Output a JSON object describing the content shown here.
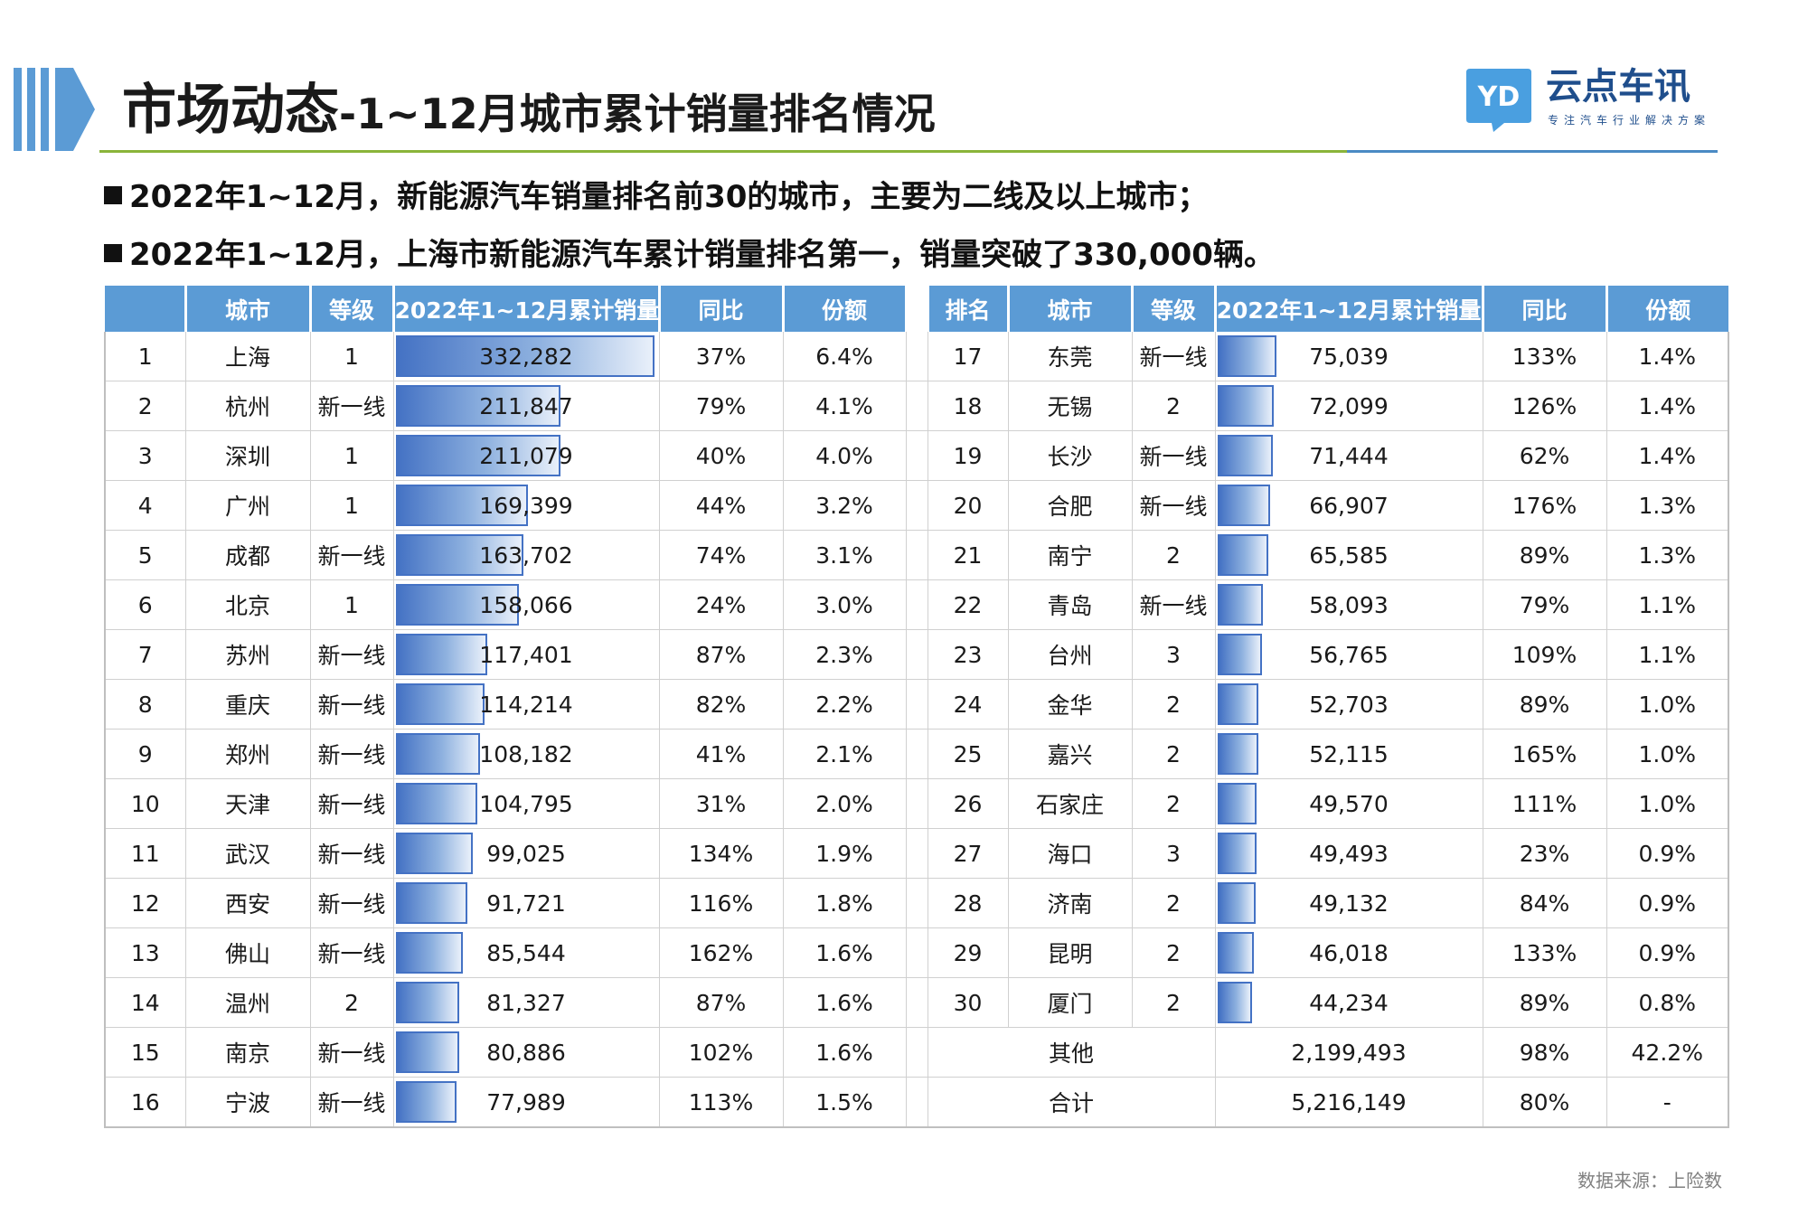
{
  "header": {
    "title_main": "市场动态",
    "title_sub": "-1~12月城市累计销量排名情况"
  },
  "logo": {
    "mark_text": "YD",
    "name": "云点车讯",
    "tagline": "专注汽车行业解决方案"
  },
  "bullets": [
    "2022年1~12月，新能源汽车销量排名前30的城市，主要为二线及以上城市；",
    "2022年1~12月，上海市新能源汽车累计销量排名第一，销量突破了330,000辆。"
  ],
  "colors": {
    "header_blue": "#5b9bd5",
    "bar_blue": "#4472c4",
    "green_line": "#8ab43a",
    "brand": "#1f4e8c"
  },
  "table": {
    "headers_left": [
      "",
      "城市",
      "等级",
      "2022年1~12月累计销量",
      "同比",
      "份额"
    ],
    "headers_right": [
      "排名",
      "城市",
      "等级",
      "2022年1~12月累计销量",
      "同比",
      "份额"
    ],
    "max_sales": 332282,
    "left_rows": [
      {
        "rank": "1",
        "city": "上海",
        "tier": "1",
        "sales": "332,282",
        "value": 332282,
        "yoy": "37%",
        "share": "6.4%"
      },
      {
        "rank": "2",
        "city": "杭州",
        "tier": "新一线",
        "sales": "211,847",
        "value": 211847,
        "yoy": "79%",
        "share": "4.1%"
      },
      {
        "rank": "3",
        "city": "深圳",
        "tier": "1",
        "sales": "211,079",
        "value": 211079,
        "yoy": "40%",
        "share": "4.0%"
      },
      {
        "rank": "4",
        "city": "广州",
        "tier": "1",
        "sales": "169,399",
        "value": 169399,
        "yoy": "44%",
        "share": "3.2%"
      },
      {
        "rank": "5",
        "city": "成都",
        "tier": "新一线",
        "sales": "163,702",
        "value": 163702,
        "yoy": "74%",
        "share": "3.1%"
      },
      {
        "rank": "6",
        "city": "北京",
        "tier": "1",
        "sales": "158,066",
        "value": 158066,
        "yoy": "24%",
        "share": "3.0%"
      },
      {
        "rank": "7",
        "city": "苏州",
        "tier": "新一线",
        "sales": "117,401",
        "value": 117401,
        "yoy": "87%",
        "share": "2.3%"
      },
      {
        "rank": "8",
        "city": "重庆",
        "tier": "新一线",
        "sales": "114,214",
        "value": 114214,
        "yoy": "82%",
        "share": "2.2%"
      },
      {
        "rank": "9",
        "city": "郑州",
        "tier": "新一线",
        "sales": "108,182",
        "value": 108182,
        "yoy": "41%",
        "share": "2.1%"
      },
      {
        "rank": "10",
        "city": "天津",
        "tier": "新一线",
        "sales": "104,795",
        "value": 104795,
        "yoy": "31%",
        "share": "2.0%"
      },
      {
        "rank": "11",
        "city": "武汉",
        "tier": "新一线",
        "sales": "99,025",
        "value": 99025,
        "yoy": "134%",
        "share": "1.9%"
      },
      {
        "rank": "12",
        "city": "西安",
        "tier": "新一线",
        "sales": "91,721",
        "value": 91721,
        "yoy": "116%",
        "share": "1.8%"
      },
      {
        "rank": "13",
        "city": "佛山",
        "tier": "新一线",
        "sales": "85,544",
        "value": 85544,
        "yoy": "162%",
        "share": "1.6%"
      },
      {
        "rank": "14",
        "city": "温州",
        "tier": "2",
        "sales": "81,327",
        "value": 81327,
        "yoy": "87%",
        "share": "1.6%"
      },
      {
        "rank": "15",
        "city": "南京",
        "tier": "新一线",
        "sales": "80,886",
        "value": 80886,
        "yoy": "102%",
        "share": "1.6%"
      },
      {
        "rank": "16",
        "city": "宁波",
        "tier": "新一线",
        "sales": "77,989",
        "value": 77989,
        "yoy": "113%",
        "share": "1.5%"
      }
    ],
    "right_rows": [
      {
        "rank": "17",
        "city": "东莞",
        "tier": "新一线",
        "sales": "75,039",
        "value": 75039,
        "yoy": "133%",
        "share": "1.4%"
      },
      {
        "rank": "18",
        "city": "无锡",
        "tier": "2",
        "sales": "72,099",
        "value": 72099,
        "yoy": "126%",
        "share": "1.4%"
      },
      {
        "rank": "19",
        "city": "长沙",
        "tier": "新一线",
        "sales": "71,444",
        "value": 71444,
        "yoy": "62%",
        "share": "1.4%"
      },
      {
        "rank": "20",
        "city": "合肥",
        "tier": "新一线",
        "sales": "66,907",
        "value": 66907,
        "yoy": "176%",
        "share": "1.3%"
      },
      {
        "rank": "21",
        "city": "南宁",
        "tier": "2",
        "sales": "65,585",
        "value": 65585,
        "yoy": "89%",
        "share": "1.3%"
      },
      {
        "rank": "22",
        "city": "青岛",
        "tier": "新一线",
        "sales": "58,093",
        "value": 58093,
        "yoy": "79%",
        "share": "1.1%"
      },
      {
        "rank": "23",
        "city": "台州",
        "tier": "3",
        "sales": "56,765",
        "value": 56765,
        "yoy": "109%",
        "share": "1.1%"
      },
      {
        "rank": "24",
        "city": "金华",
        "tier": "2",
        "sales": "52,703",
        "value": 52703,
        "yoy": "89%",
        "share": "1.0%"
      },
      {
        "rank": "25",
        "city": "嘉兴",
        "tier": "2",
        "sales": "52,115",
        "value": 52115,
        "yoy": "165%",
        "share": "1.0%"
      },
      {
        "rank": "26",
        "city": "石家庄",
        "tier": "2",
        "sales": "49,570",
        "value": 49570,
        "yoy": "111%",
        "share": "1.0%"
      },
      {
        "rank": "27",
        "city": "海口",
        "tier": "3",
        "sales": "49,493",
        "value": 49493,
        "yoy": "23%",
        "share": "0.9%"
      },
      {
        "rank": "28",
        "city": "济南",
        "tier": "2",
        "sales": "49,132",
        "value": 49132,
        "yoy": "84%",
        "share": "0.9%"
      },
      {
        "rank": "29",
        "city": "昆明",
        "tier": "2",
        "sales": "46,018",
        "value": 46018,
        "yoy": "133%",
        "share": "0.9%"
      },
      {
        "rank": "30",
        "city": "厦门",
        "tier": "2",
        "sales": "44,234",
        "value": 44234,
        "yoy": "89%",
        "share": "0.8%"
      }
    ],
    "summary_rows": [
      {
        "label": "其他",
        "sales": "2,199,493",
        "yoy": "98%",
        "share": "42.2%"
      },
      {
        "label": "合计",
        "sales": "5,216,149",
        "yoy": "80%",
        "share": "-"
      }
    ]
  },
  "source": "数据来源：上险数"
}
